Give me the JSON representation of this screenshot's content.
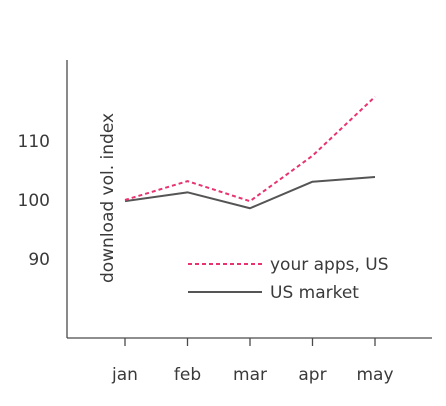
{
  "chart_data": {
    "type": "line",
    "categories": [
      "jan",
      "feb",
      "mar",
      "apr",
      "may"
    ],
    "ylabel": "download vol. index",
    "ylim": [
      78,
      124
    ],
    "yticks": [
      90,
      100,
      110
    ],
    "grid": false,
    "legend_position": "inside-lower-right",
    "series": [
      {
        "name": "your apps, US",
        "values": [
          100,
          103.2,
          99.8,
          107.5,
          117.5
        ],
        "color": "#e8336f",
        "style": "dashed"
      },
      {
        "name": "US market",
        "values": [
          99.8,
          101.3,
          98.6,
          103.1,
          103.9
        ],
        "color": "#555555",
        "style": "solid"
      }
    ]
  }
}
